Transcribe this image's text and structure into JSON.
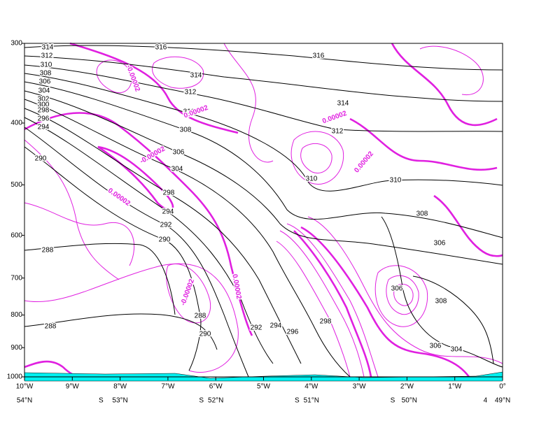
{
  "chart_data": {
    "type": "contour",
    "ylim": [
      1000,
      300
    ],
    "log_y": true,
    "yticks": [
      300,
      400,
      500,
      600,
      700,
      800,
      900,
      1000
    ],
    "xlim": [
      -10,
      0
    ],
    "xticks": [
      {
        "value": -10,
        "label": "10°W"
      },
      {
        "value": -9,
        "label": "9°W"
      },
      {
        "value": -8,
        "label": "8°W"
      },
      {
        "value": -7,
        "label": "7°W"
      },
      {
        "value": -6,
        "label": "6°W"
      },
      {
        "value": -5,
        "label": "5°W"
      },
      {
        "value": -4,
        "label": "4°W"
      },
      {
        "value": -3,
        "label": "3°W"
      },
      {
        "value": -2,
        "label": "2°W"
      },
      {
        "value": -1,
        "label": "1°W"
      },
      {
        "value": 0,
        "label": "0°"
      }
    ],
    "lat_ticks": [
      {
        "value": -10,
        "label": "54°N"
      },
      {
        "value": -8.4,
        "label": "S"
      },
      {
        "value": -8,
        "label": "53°N"
      },
      {
        "value": -6.3,
        "label": "S"
      },
      {
        "value": -6,
        "label": "52°N"
      },
      {
        "value": -4.3,
        "label": "S"
      },
      {
        "value": -4,
        "label": "51°N"
      },
      {
        "value": -2.3,
        "label": "S"
      },
      {
        "value": -1.95,
        "label": "50°N"
      },
      {
        "value": -0.36,
        "label": "4"
      },
      {
        "value": 0,
        "label": "49°N"
      }
    ],
    "theta_labels": [
      314,
      312,
      310,
      308,
      306,
      304,
      302,
      300,
      298,
      296,
      294,
      290,
      316,
      316,
      314,
      312,
      310,
      308,
      306,
      304,
      298,
      294,
      292,
      290,
      288,
      288,
      288,
      290,
      292,
      294,
      296,
      298,
      314,
      312,
      310,
      310,
      308,
      306,
      306,
      308,
      306,
      304
    ],
    "pv_labels": [
      2e-05,
      2e-05,
      2e-05,
      2e-05,
      2e-05,
      -2e-05,
      -2e-05,
      -2e-05
    ]
  }
}
